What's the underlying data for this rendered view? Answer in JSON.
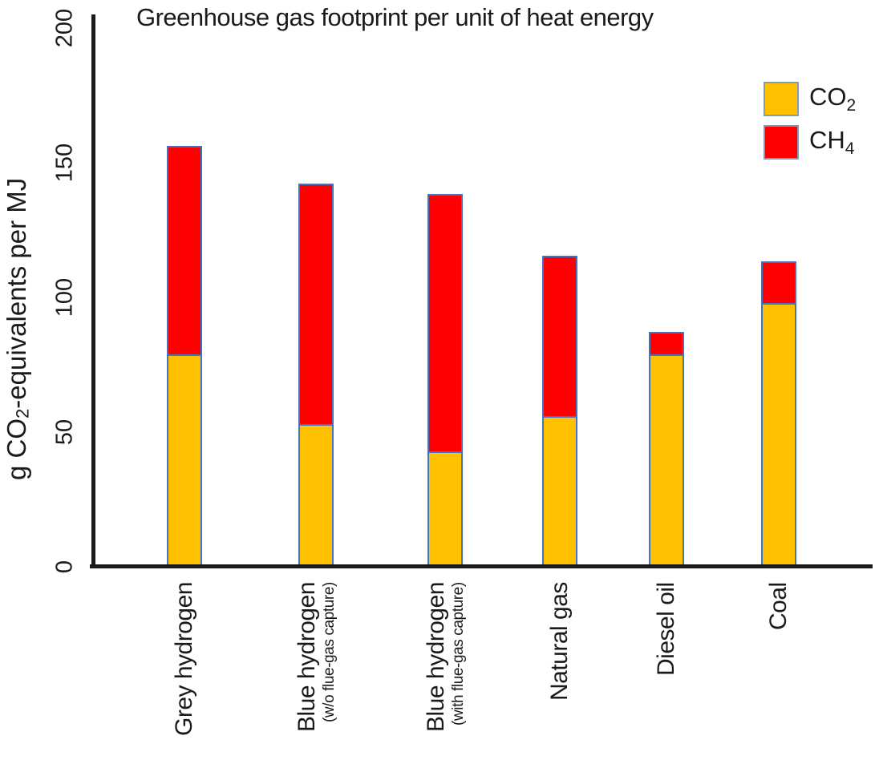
{
  "title": "Greenhouse gas footprint per unit of heat energy",
  "y_axis": {
    "label_prefix": "g CO",
    "label_sub": "2",
    "label_suffix": "-equivalents per MJ"
  },
  "legend": [
    {
      "name": "CO2",
      "base": "CO",
      "sub": "2",
      "color": "#FFC000"
    },
    {
      "name": "CH4",
      "base": "CH",
      "sub": "4",
      "color": "#FF0000"
    }
  ],
  "colors": {
    "co2_fill": "#FFC000",
    "ch4_fill": "#FF0000",
    "bar_border": "#4472C4",
    "axis": "#1a1a1a"
  },
  "chart_data": {
    "type": "bar",
    "stacked": true,
    "title": "Greenhouse gas footprint per unit of heat energy",
    "xlabel": "",
    "ylabel": "g CO2-equivalents per MJ",
    "ylim": [
      0,
      200
    ],
    "y_ticks": [
      0,
      50,
      100,
      150,
      200
    ],
    "grid": false,
    "legend_position": "top-right",
    "categories": [
      {
        "label": "Grey hydrogen",
        "sublabel": ""
      },
      {
        "label": "Blue hydrogen",
        "sublabel": "(w/o flue-gas capture)"
      },
      {
        "label": "Blue hydrogen",
        "sublabel": "(with flue-gas capture)"
      },
      {
        "label": "Natural gas",
        "sublabel": ""
      },
      {
        "label": "Diesel oil",
        "sublabel": ""
      },
      {
        "label": "Coal",
        "sublabel": ""
      }
    ],
    "series": [
      {
        "name": "CO2",
        "color": "#FFC000",
        "values": [
          79,
          53,
          43,
          56,
          79,
          98
        ]
      },
      {
        "name": "CH4",
        "color": "#FF0000",
        "values": [
          78,
          90,
          96,
          60,
          9,
          16
        ]
      }
    ],
    "totals": [
      157,
      143,
      139,
      116,
      88,
      114
    ]
  }
}
